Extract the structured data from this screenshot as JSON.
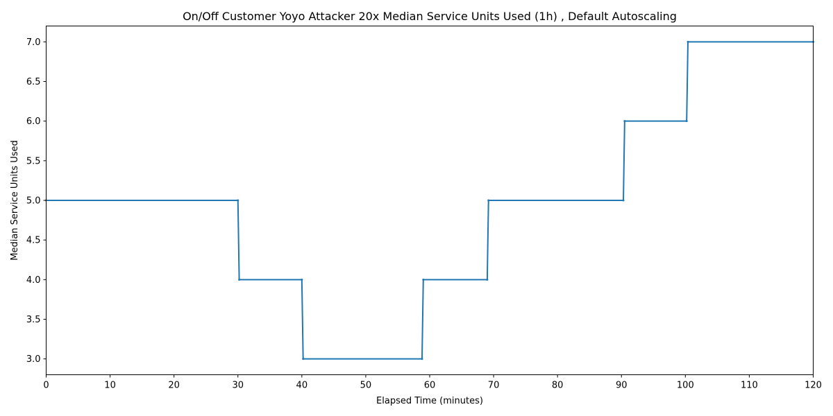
{
  "chart_data": {
    "type": "line",
    "title": "On/Off Customer Yoyo Attacker 20x Median Service Units Used (1h) , Default Autoscaling",
    "xlabel": "Elapsed Time (minutes)",
    "ylabel": "Median Service Units Used",
    "xlim": [
      0,
      120
    ],
    "ylim": [
      2.8,
      7.2
    ],
    "x_ticks": [
      0,
      10,
      20,
      30,
      40,
      50,
      60,
      70,
      80,
      90,
      100,
      110,
      120
    ],
    "y_ticks": [
      3.0,
      3.5,
      4.0,
      4.5,
      5.0,
      5.5,
      6.0,
      6.5,
      7.0
    ],
    "grid": false,
    "series": [
      {
        "color": "#1f77b4",
        "x": [
          0,
          30.0,
          30.2,
          40.0,
          40.2,
          58.8,
          59.0,
          69.0,
          69.2,
          90.3,
          90.5,
          100.2,
          100.4,
          120
        ],
        "values": [
          5,
          5,
          4,
          4,
          3,
          3,
          4,
          4,
          5,
          5,
          6,
          6,
          7,
          7
        ]
      }
    ]
  }
}
